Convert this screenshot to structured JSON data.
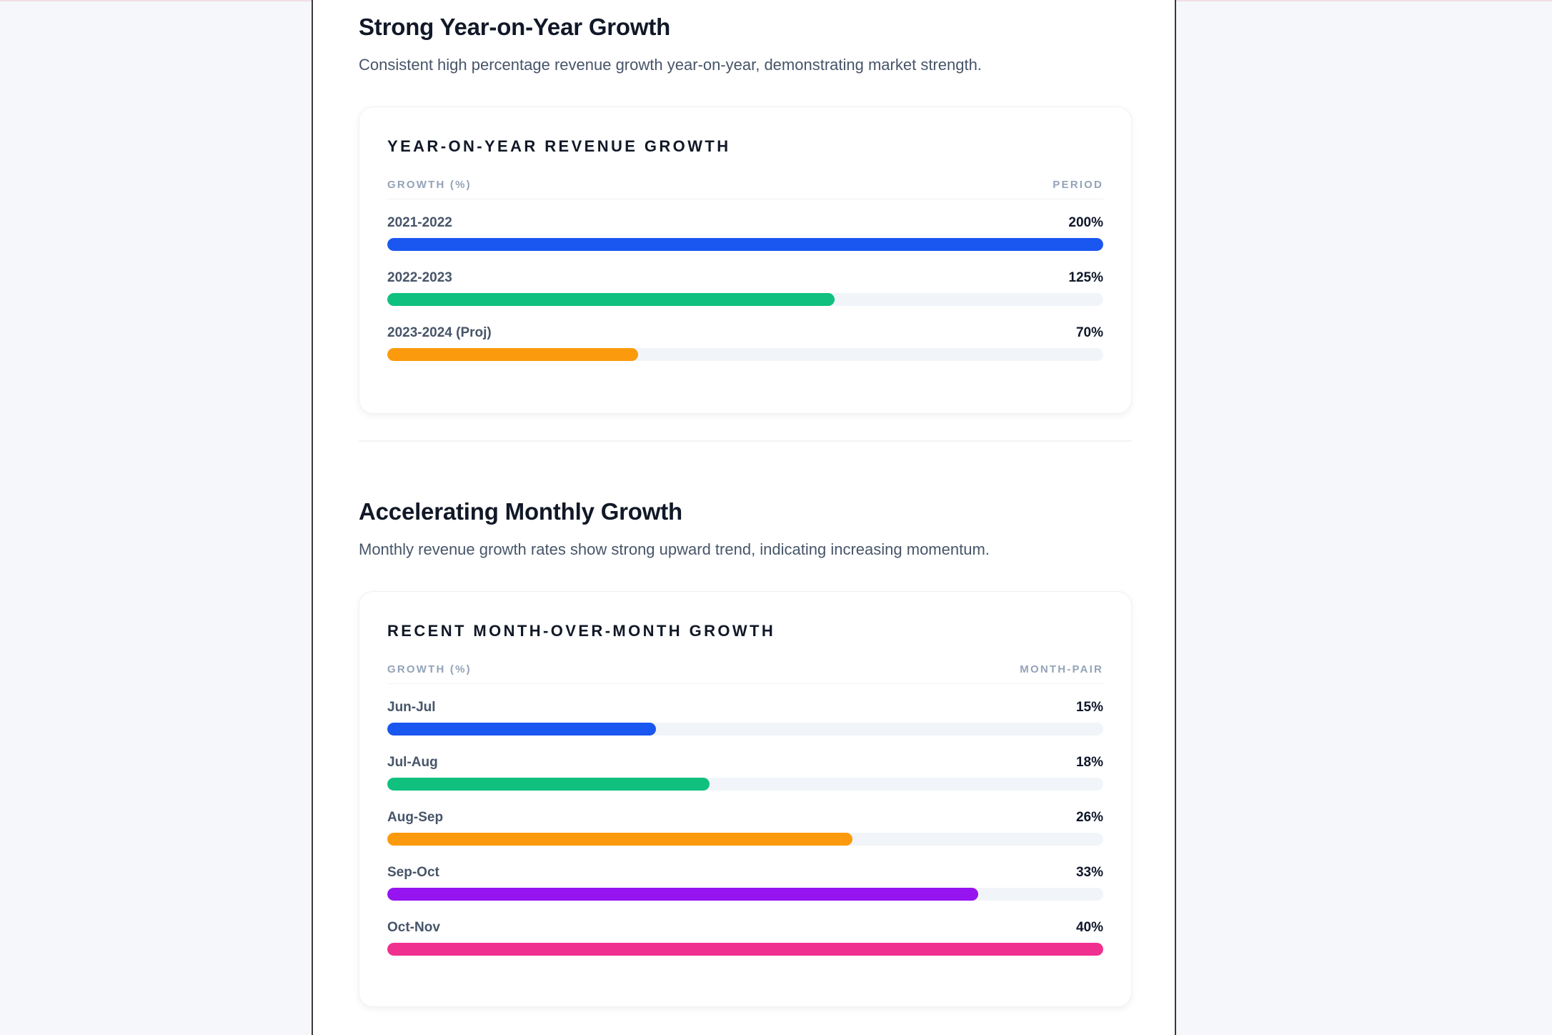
{
  "sections": [
    {
      "heading": "Strong Year-on-Year Growth",
      "subtitle": "Consistent high percentage revenue growth year-on-year, demonstrating market strength."
    },
    {
      "heading": "Accelerating Monthly Growth",
      "subtitle": "Monthly revenue growth rates show strong upward trend, indicating increasing momentum."
    }
  ],
  "chart_data": [
    {
      "type": "bar",
      "orientation": "horizontal",
      "title": "YEAR-ON-YEAR REVENUE GROWTH",
      "xlabel": "GROWTH (%)",
      "ylabel": "PERIOD",
      "categories": [
        "2021-2022",
        "2022-2023",
        "2023-2024 (Proj)"
      ],
      "values": [
        200,
        125,
        70
      ],
      "value_labels": [
        "200%",
        "125%",
        "70%"
      ],
      "xlim": [
        0,
        200
      ],
      "colors": [
        "#1a56f0",
        "#10c07f",
        "#fb9a0c"
      ],
      "grid": false
    },
    {
      "type": "bar",
      "orientation": "horizontal",
      "title": "RECENT MONTH-OVER-MONTH GROWTH",
      "xlabel": "GROWTH (%)",
      "ylabel": "MONTH-PAIR",
      "categories": [
        "Jun-Jul",
        "Jul-Aug",
        "Aug-Sep",
        "Sep-Oct",
        "Oct-Nov"
      ],
      "values": [
        15,
        18,
        26,
        33,
        40
      ],
      "value_labels": [
        "15%",
        "18%",
        "26%",
        "33%",
        "40%"
      ],
      "xlim": [
        0,
        40
      ],
      "colors": [
        "#1a56f0",
        "#10c07f",
        "#fb9a0c",
        "#9514ef",
        "#f0308f"
      ],
      "grid": false
    }
  ]
}
